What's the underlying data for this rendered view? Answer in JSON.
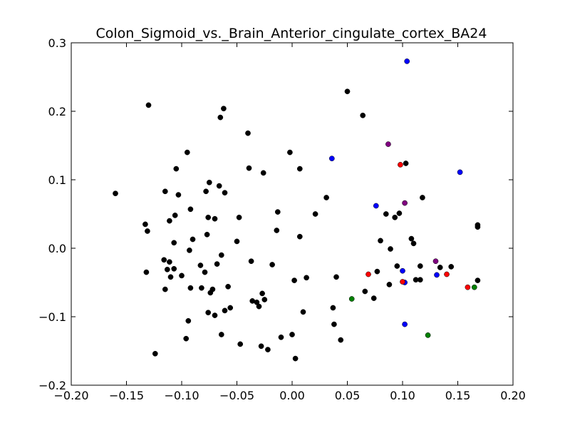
{
  "chart_data": {
    "type": "scatter",
    "title": "Colon_Sigmoid_vs._Brain_Anterior_cingulate_cortex_BA24",
    "xlabel": "",
    "ylabel": "",
    "xlim": [
      -0.2,
      0.2
    ],
    "ylim": [
      -0.2,
      0.3
    ],
    "grid": false,
    "xticks": [
      "−0.20",
      "−0.15",
      "−0.10",
      "−0.05",
      "0.00",
      "0.05",
      "0.10",
      "0.15",
      "0.20"
    ],
    "yticks": [
      "−0.2",
      "−0.1",
      "0.0",
      "0.1",
      "0.2",
      "0.3"
    ],
    "xtick_values": [
      -0.2,
      -0.15,
      -0.1,
      -0.05,
      0.0,
      0.05,
      0.1,
      0.15,
      0.2
    ],
    "ytick_values": [
      -0.2,
      -0.1,
      0.0,
      0.1,
      0.2,
      0.3
    ],
    "series": [
      {
        "name": "black",
        "color": "#000000",
        "points": [
          [
            -0.16,
            0.08
          ],
          [
            -0.13,
            0.209
          ],
          [
            -0.133,
            0.035
          ],
          [
            -0.131,
            0.025
          ],
          [
            -0.132,
            -0.035
          ],
          [
            -0.124,
            -0.154
          ],
          [
            -0.115,
            0.083
          ],
          [
            -0.116,
            -0.017
          ],
          [
            -0.113,
            -0.031
          ],
          [
            -0.115,
            -0.06
          ],
          [
            -0.111,
            0.04
          ],
          [
            -0.111,
            -0.02
          ],
          [
            -0.11,
            -0.042
          ],
          [
            -0.107,
            0.008
          ],
          [
            -0.107,
            -0.03
          ],
          [
            -0.106,
            0.048
          ],
          [
            -0.105,
            0.116
          ],
          [
            -0.103,
            0.078
          ],
          [
            -0.1,
            -0.04
          ],
          [
            -0.096,
            -0.132
          ],
          [
            -0.095,
            0.14
          ],
          [
            -0.094,
            -0.106
          ],
          [
            -0.093,
            -0.003
          ],
          [
            -0.092,
            0.057
          ],
          [
            -0.092,
            -0.058
          ],
          [
            -0.09,
            0.013
          ],
          [
            -0.083,
            -0.025
          ],
          [
            -0.082,
            -0.058
          ],
          [
            -0.079,
            -0.035
          ],
          [
            -0.078,
            0.083
          ],
          [
            -0.077,
            0.02
          ],
          [
            -0.076,
            0.045
          ],
          [
            -0.076,
            -0.094
          ],
          [
            -0.075,
            0.096
          ],
          [
            -0.074,
            -0.065
          ],
          [
            -0.072,
            -0.06
          ],
          [
            -0.07,
            0.043
          ],
          [
            -0.07,
            -0.098
          ],
          [
            -0.068,
            -0.023
          ],
          [
            -0.066,
            0.091
          ],
          [
            -0.065,
            0.191
          ],
          [
            -0.064,
            -0.01
          ],
          [
            -0.064,
            -0.126
          ],
          [
            -0.062,
            0.204
          ],
          [
            -0.061,
            -0.091
          ],
          [
            -0.061,
            0.081
          ],
          [
            -0.058,
            -0.056
          ],
          [
            -0.056,
            -0.087
          ],
          [
            -0.05,
            0.01
          ],
          [
            -0.048,
            0.045
          ],
          [
            -0.047,
            -0.14
          ],
          [
            -0.04,
            0.168
          ],
          [
            -0.039,
            0.117
          ],
          [
            -0.037,
            -0.019
          ],
          [
            -0.036,
            -0.077
          ],
          [
            -0.032,
            -0.079
          ],
          [
            -0.03,
            -0.085
          ],
          [
            -0.028,
            -0.143
          ],
          [
            -0.027,
            -0.066
          ],
          [
            -0.026,
            0.11
          ],
          [
            -0.025,
            -0.075
          ],
          [
            -0.022,
            -0.148
          ],
          [
            -0.018,
            -0.024
          ],
          [
            -0.014,
            0.026
          ],
          [
            -0.013,
            0.053
          ],
          [
            -0.01,
            -0.13
          ],
          [
            -0.002,
            0.14
          ],
          [
            0.0,
            -0.126
          ],
          [
            0.002,
            -0.047
          ],
          [
            0.003,
            -0.161
          ],
          [
            0.007,
            0.116
          ],
          [
            0.007,
            0.017
          ],
          [
            0.01,
            -0.093
          ],
          [
            0.013,
            -0.043
          ],
          [
            0.021,
            0.05
          ],
          [
            0.031,
            0.074
          ],
          [
            0.037,
            -0.087
          ],
          [
            0.038,
            -0.111
          ],
          [
            0.04,
            -0.042
          ],
          [
            0.044,
            -0.134
          ],
          [
            0.05,
            0.229
          ],
          [
            0.064,
            0.194
          ],
          [
            0.066,
            -0.063
          ],
          [
            0.074,
            -0.073
          ],
          [
            0.077,
            -0.034
          ],
          [
            0.08,
            0.011
          ],
          [
            0.085,
            0.05
          ],
          [
            0.088,
            -0.053
          ],
          [
            0.089,
            -0.001
          ],
          [
            0.093,
            0.045
          ],
          [
            0.095,
            -0.026
          ],
          [
            0.097,
            0.051
          ],
          [
            0.103,
            0.124
          ],
          [
            0.108,
            0.014
          ],
          [
            0.11,
            0.007
          ],
          [
            0.112,
            -0.046
          ],
          [
            0.116,
            -0.046
          ],
          [
            0.116,
            -0.026
          ],
          [
            0.118,
            0.074
          ],
          [
            0.134,
            -0.028
          ],
          [
            0.144,
            -0.027
          ],
          [
            0.168,
            0.034
          ],
          [
            0.168,
            0.031
          ],
          [
            0.168,
            -0.047
          ]
        ]
      },
      {
        "name": "blue",
        "color": "#0000ff",
        "points": [
          [
            0.036,
            0.131
          ],
          [
            0.076,
            0.062
          ],
          [
            0.1,
            -0.033
          ],
          [
            0.102,
            -0.05
          ],
          [
            0.102,
            -0.111
          ],
          [
            0.104,
            0.273
          ],
          [
            0.131,
            -0.039
          ],
          [
            0.152,
            0.111
          ]
        ]
      },
      {
        "name": "red",
        "color": "#ff0000",
        "points": [
          [
            0.069,
            -0.038
          ],
          [
            0.098,
            0.122
          ],
          [
            0.1,
            -0.049
          ],
          [
            0.14,
            -0.038
          ],
          [
            0.159,
            -0.057
          ]
        ]
      },
      {
        "name": "purple",
        "color": "#800080",
        "points": [
          [
            0.087,
            0.152
          ],
          [
            0.102,
            0.066
          ],
          [
            0.13,
            -0.019
          ]
        ]
      },
      {
        "name": "green",
        "color": "#008000",
        "points": [
          [
            0.054,
            -0.074
          ],
          [
            0.123,
            -0.127
          ],
          [
            0.165,
            -0.057
          ]
        ]
      }
    ]
  }
}
